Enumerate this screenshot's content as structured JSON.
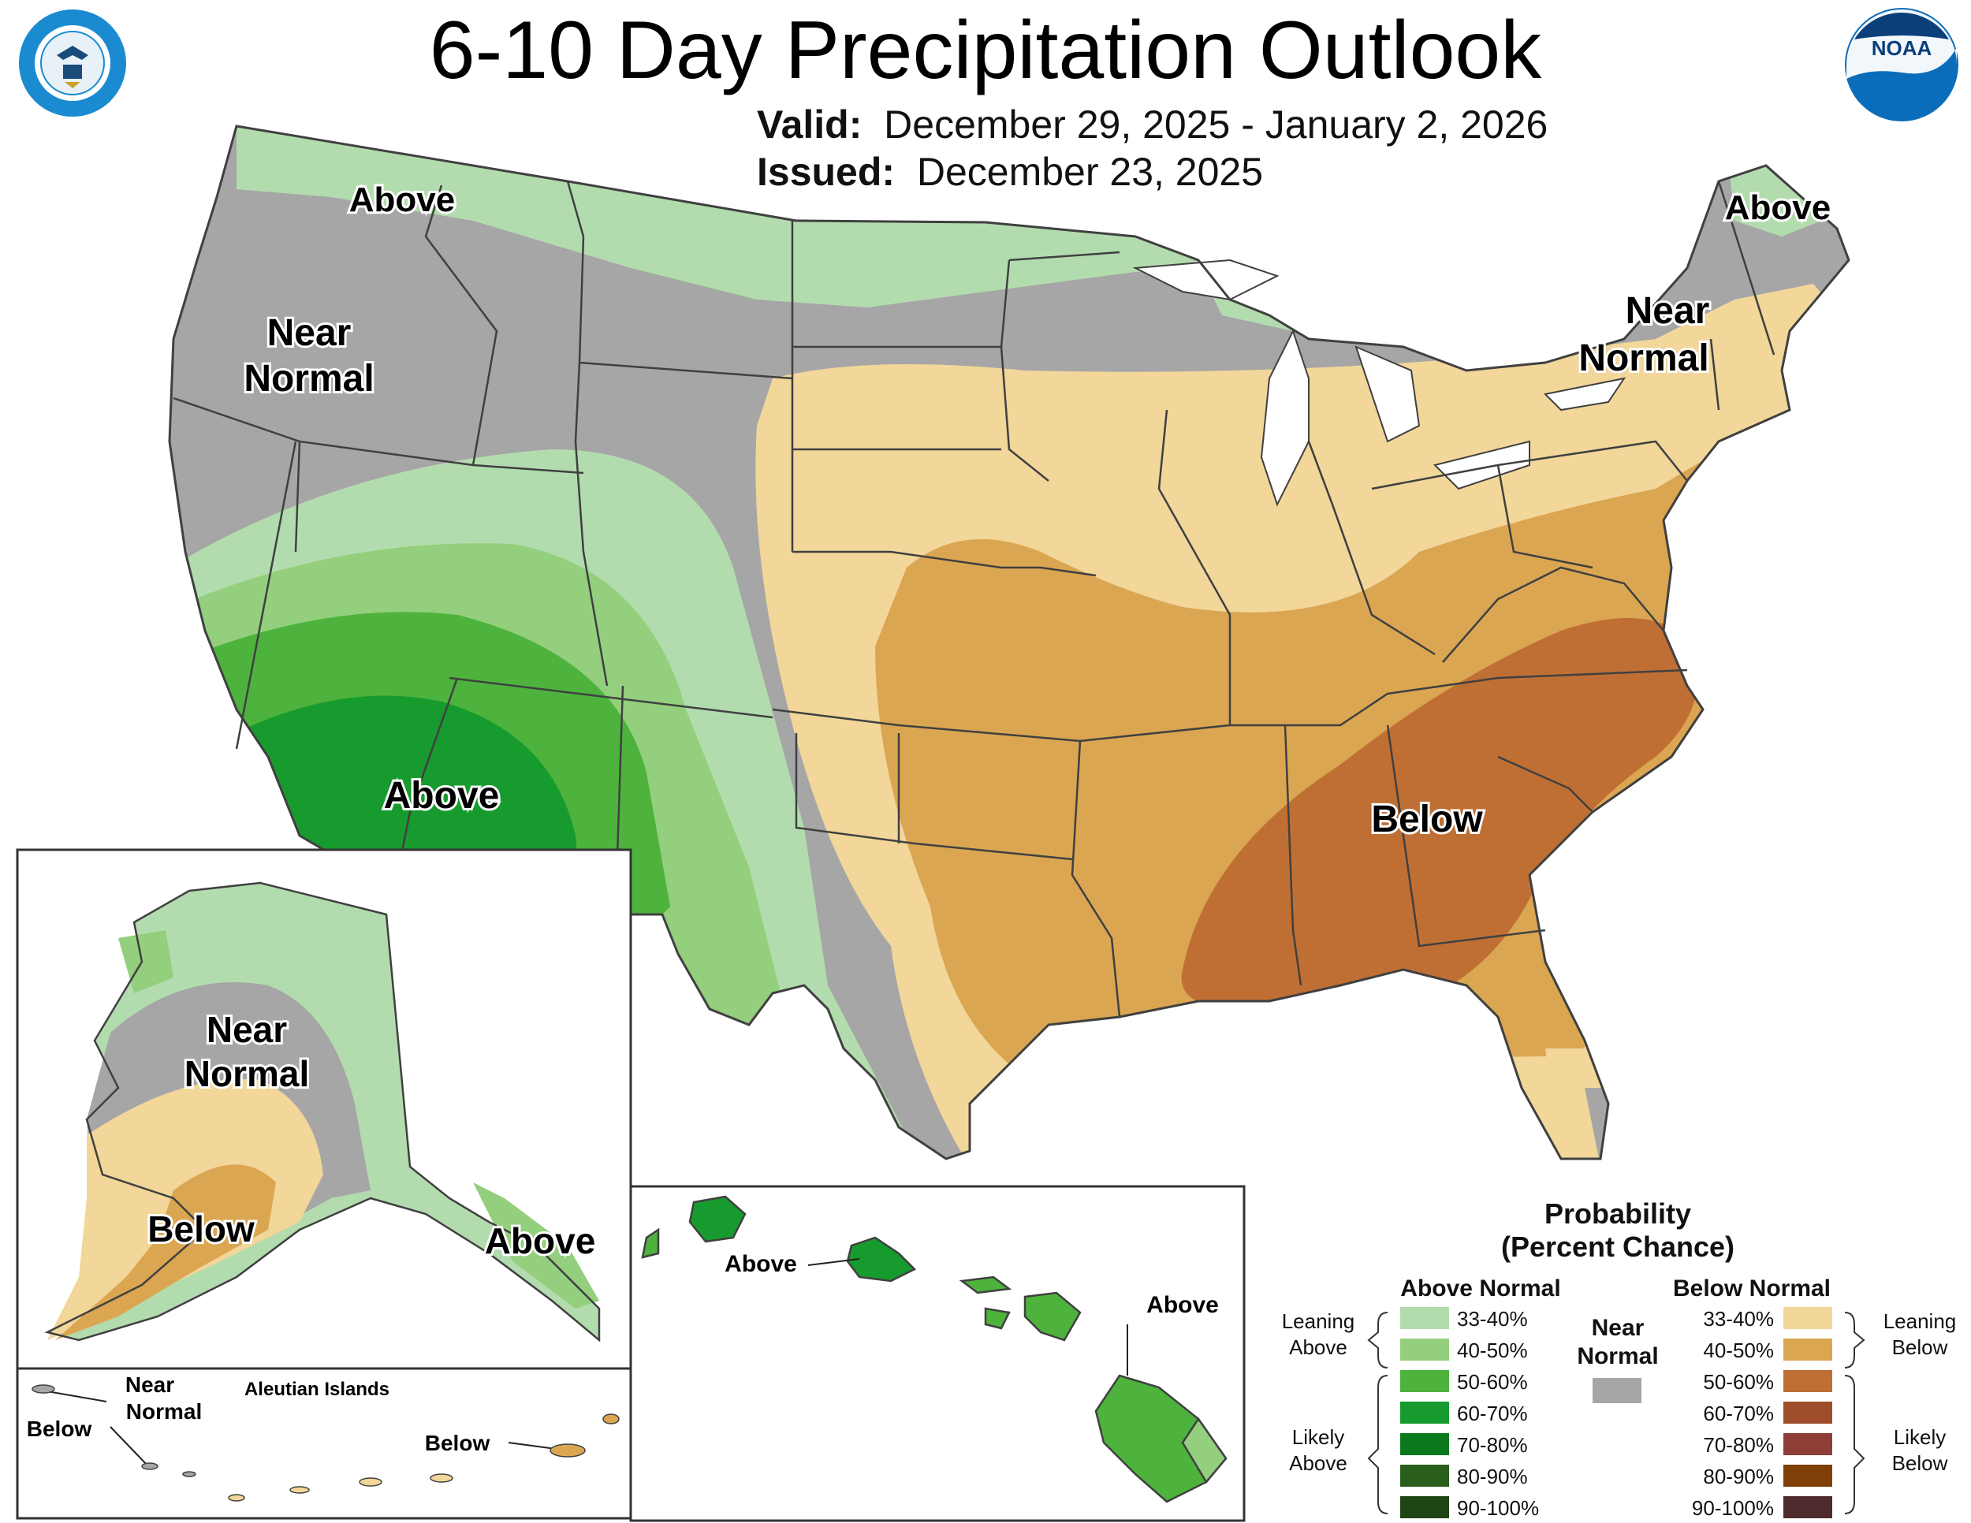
{
  "header": {
    "title": "6-10 Day Precipitation Outlook",
    "valid_label": "Valid:",
    "valid_value": "December 29, 2025 - January 2, 2026",
    "issued_label": "Issued:",
    "issued_value": "December 23, 2025",
    "logo_left_text": "DEPARTMENT OF COMMERCE · UNITED STATES OF AMERICA",
    "logo_right_text": "NOAA"
  },
  "map_labels": {
    "conus": [
      {
        "id": "pnw-above",
        "text": "Above"
      },
      {
        "id": "west-near",
        "lines": [
          "Near",
          "Normal"
        ]
      },
      {
        "id": "sw-above",
        "text": "Above"
      },
      {
        "id": "ne-above",
        "text": "Above"
      },
      {
        "id": "ne-near",
        "lines": [
          "Near",
          "Normal"
        ]
      },
      {
        "id": "se-below",
        "text": "Below"
      }
    ],
    "alaska": [
      {
        "id": "ak-near",
        "lines": [
          "Near",
          "Normal"
        ]
      },
      {
        "id": "ak-below",
        "text": "Below"
      },
      {
        "id": "ak-above",
        "text": "Above"
      }
    ],
    "aleutians": {
      "title": "Aleutian Islands",
      "near_lines": [
        "Near",
        "Normal"
      ],
      "below_west": "Below",
      "below_east": "Below"
    },
    "hawaii": {
      "above_west": "Above",
      "above_east": "Above"
    }
  },
  "legend": {
    "title_lines": [
      "Probability",
      "(Percent Chance)"
    ],
    "above_header": "Above Normal",
    "below_header": "Below Normal",
    "near_lines": [
      "Near",
      "Normal"
    ],
    "near_color": "#a6a6a6",
    "leaning_above": [
      "Leaning",
      "Above"
    ],
    "likely_above": [
      "Likely",
      "Above"
    ],
    "leaning_below": [
      "Leaning",
      "Below"
    ],
    "likely_below": [
      "Likely",
      "Below"
    ],
    "ranges": [
      "33-40%",
      "40-50%",
      "50-60%",
      "60-70%",
      "70-80%",
      "80-90%",
      "90-100%"
    ],
    "above_colors": [
      "#b3dcae",
      "#93cf7d",
      "#4db33d",
      "#179b2e",
      "#0b7a1c",
      "#2a5e1c",
      "#1e4414"
    ],
    "below_colors": [
      "#f2d69a",
      "#dba652",
      "#c06f34",
      "#9e4e2b",
      "#8e3e36",
      "#7f3f07",
      "#4f2a2c"
    ]
  }
}
